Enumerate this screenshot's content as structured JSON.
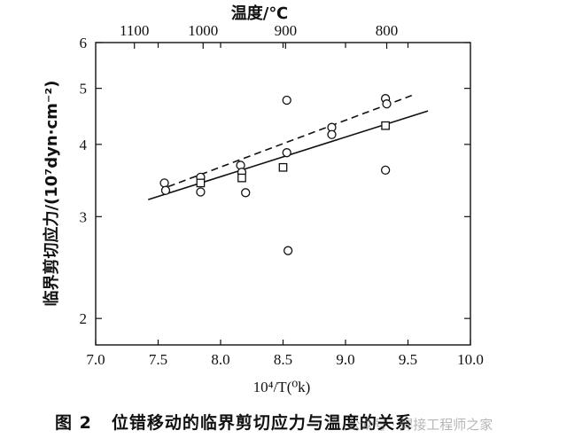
{
  "chart_data": {
    "type": "scatter",
    "top_axis_label": "温度/℃",
    "top_ticks": [
      {
        "label": "1100",
        "x": 7.31
      },
      {
        "label": "1000",
        "x": 7.86
      },
      {
        "label": "900",
        "x": 8.52
      },
      {
        "label": "800",
        "x": 9.33
      }
    ],
    "xlabel": "10⁴/T(⁰k)",
    "xlim": [
      7.0,
      10.0
    ],
    "xticks": [
      "7.0",
      "7.5",
      "8.0",
      "8.5",
      "9.0",
      "9.5",
      "10.0"
    ],
    "ylabel": "临界剪切应力/(10⁷dyn·cm⁻²)",
    "yscale": "log",
    "ylim": [
      1.8,
      6
    ],
    "yticks": [
      "2",
      "3",
      "4",
      "5",
      "6"
    ],
    "series": [
      {
        "marker": "circle",
        "points": [
          [
            7.55,
            3.43
          ],
          [
            7.56,
            3.33
          ],
          [
            7.84,
            3.51
          ],
          [
            7.84,
            3.31
          ],
          [
            8.16,
            3.68
          ],
          [
            8.17,
            3.58
          ],
          [
            8.2,
            3.3
          ],
          [
            8.53,
            4.77
          ],
          [
            8.53,
            3.87
          ],
          [
            8.54,
            2.62
          ],
          [
            8.89,
            4.28
          ],
          [
            8.89,
            4.16
          ],
          [
            9.32,
            4.8
          ],
          [
            9.33,
            4.7
          ],
          [
            9.32,
            3.61
          ]
        ],
        "fit": {
          "style": "dashed",
          "from": [
            7.58,
            3.38
          ],
          "to": [
            9.53,
            4.86
          ]
        }
      },
      {
        "marker": "square",
        "points": [
          [
            7.84,
            3.43
          ],
          [
            8.17,
            3.5
          ],
          [
            8.5,
            3.65
          ],
          [
            9.32,
            4.31
          ]
        ],
        "fit": {
          "style": "solid",
          "from": [
            7.42,
            3.21
          ],
          "to": [
            9.66,
            4.57
          ]
        }
      }
    ]
  },
  "caption": {
    "figure_number": "图 2",
    "text": "位错移动的临界剪切应力与温度的关系"
  },
  "watermark": "公众号 · 焊接工程师之家"
}
